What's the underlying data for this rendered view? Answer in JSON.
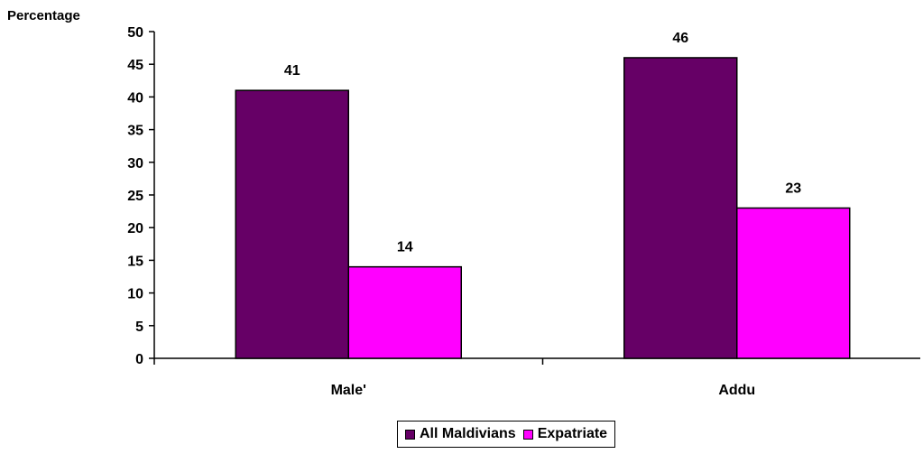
{
  "chart_data": {
    "type": "bar",
    "ylabel": "Percentage",
    "xlabel": "",
    "ylim": [
      0,
      50
    ],
    "ytick_step": 5,
    "yticks": [
      "0",
      "5",
      "10",
      "15",
      "20",
      "25",
      "30",
      "35",
      "40",
      "45",
      "50"
    ],
    "categories": [
      "Male'",
      "Addu"
    ],
    "series": [
      {
        "name": "All Maldivians",
        "values": [
          41,
          46
        ],
        "color": "#660066"
      },
      {
        "name": "Expatriate",
        "values": [
          14,
          23
        ],
        "color": "#ff00ff"
      }
    ],
    "data_labels": [
      [
        "41",
        "46"
      ],
      [
        "14",
        "23"
      ]
    ],
    "legend_position": "bottom-center",
    "grid": false
  }
}
